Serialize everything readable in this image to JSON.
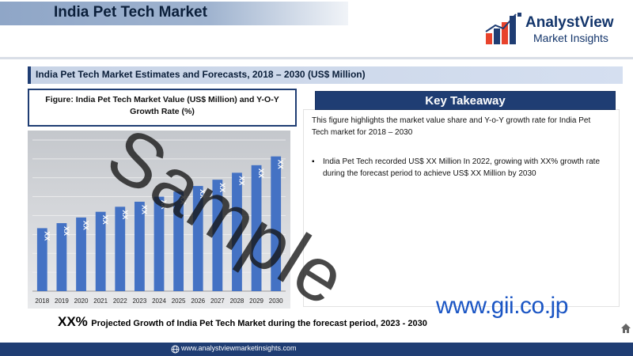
{
  "header": {
    "title": "India Pet Tech Market",
    "logo_name": "AnalystView",
    "logo_sub": "Market Insights"
  },
  "section_title": "India Pet Tech Market Estimates and Forecasts, 2018 – 2030 (US$ Million)",
  "figure_caption": "Figure: India Pet Tech Market Value (US$ Million) and Y-O-Y Growth Rate (%)",
  "key_takeaway": {
    "heading": "Key Takeaway",
    "intro": "This figure highlights the market value share and Y-o-Y growth rate for India Pet Tech market for 2018 – 2030",
    "bullet": "India Pet Tech recorded US$ XX Million In 2022, growing with XX% growth rate during the forecast period to achieve US$ XX Million by 2030"
  },
  "growth": {
    "value": "XX%",
    "text": "Projected Growth of India Pet Tech Market during the forecast period, 2023 - 2030"
  },
  "footer_url": "www.analystviewmarketinsights.com",
  "gii_watermark": "www.gii.co.jp",
  "sample_watermark": "Sample",
  "colors": {
    "bar": "#4472c4",
    "brand_navy": "#1f3d73",
    "gii_blue": "#1a55c4"
  },
  "icons": [
    "logo-bars-icon",
    "globe-icon",
    "home-icon"
  ],
  "chart_data": {
    "type": "bar",
    "categories": [
      "2018",
      "2019",
      "2020",
      "2021",
      "2022",
      "2023",
      "2024",
      "2025",
      "2026",
      "2027",
      "2028",
      "2029",
      "2030"
    ],
    "values": [
      100,
      108,
      117,
      126,
      134,
      142,
      150,
      158,
      167,
      177,
      188,
      200,
      214
    ],
    "data_labels": [
      "XX",
      "XX",
      "XX",
      "XX",
      "XX",
      "XX",
      "XX",
      "XX",
      "XX",
      "XX",
      "XX",
      "XX",
      "XX"
    ],
    "ylim": [
      0,
      240
    ],
    "grid": true,
    "title": "",
    "xlabel": "",
    "ylabel": ""
  }
}
